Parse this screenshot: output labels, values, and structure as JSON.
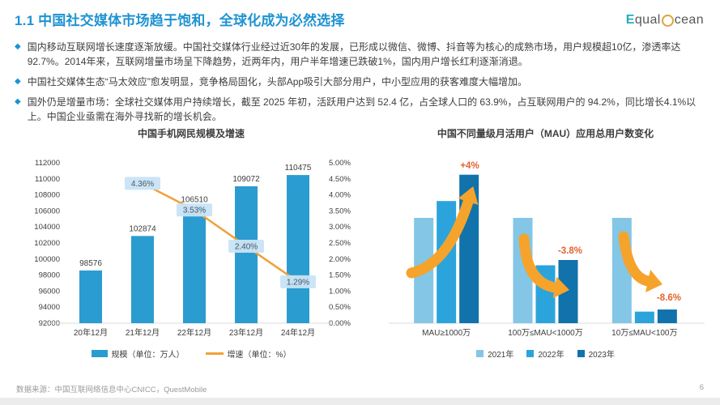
{
  "header": {
    "title": "1.1 中国社交媒体市场趋于饱和，全球化成为必然选择",
    "logo": {
      "e": "E",
      "qual": "qual",
      "cean": "cean"
    }
  },
  "bullets": {
    "glyph": "◆",
    "items": [
      "国内移动互联网增长速度逐渐放缓。中国社交媒体行业经过近30年的发展，已形成以微信、微博、抖音等为核心的成熟市场，用户规模超10亿，渗透率达92.7%。2014年来，互联网增量市场呈下降趋势，近两年内，用户半年增速已跌破1%，国内用户增长红利逐渐消退。",
      "中国社交媒体生态“马太效应”愈发明显，竞争格局固化，头部App吸引大部分用户，中小型应用的获客难度大幅增加。",
      "国外仍是增量市场：全球社交媒体用户持续增长，截至 2025 年初，活跃用户达到 52.4 亿，占全球人口的 63.9%，占互联网用户的 94.2%，同比增长4.1%以上。中国企业亟需在海外寻找新的增长机会。"
    ]
  },
  "chart_data": [
    {
      "type": "bar",
      "subtype": "combo-bar-line",
      "title": "中国手机网民规模及增速",
      "categories": [
        "20年12月",
        "21年12月",
        "22年12月",
        "23年12月",
        "24年12月"
      ],
      "series": [
        {
          "name": "规模（单位：万人）",
          "chart": "bar",
          "color": "#2B9CD0",
          "values": [
            98576,
            102874,
            106510,
            109072,
            110475
          ]
        },
        {
          "name": "增速（单位：%）",
          "chart": "line",
          "color": "#F0A139",
          "values": [
            null,
            4.36,
            3.53,
            2.4,
            1.29
          ],
          "point_labels": [
            "",
            "4.36%",
            "3.53%",
            "2.40%",
            "1.29%"
          ]
        }
      ],
      "y_left": {
        "min": 92000,
        "max": 112000,
        "step": 2000,
        "ticks": [
          "112000",
          "110000",
          "108000",
          "106000",
          "104000",
          "102000",
          "100000",
          "98000",
          "96000",
          "94000",
          "92000"
        ]
      },
      "y_right": {
        "min": 0,
        "max": 5,
        "step": 0.5,
        "ticks": [
          "5.00%",
          "4.50%",
          "4.00%",
          "3.50%",
          "3.00%",
          "2.50%",
          "2.00%",
          "1.50%",
          "1.00%",
          "0.50%",
          "0.00%"
        ]
      },
      "legend_position": "bottom",
      "grid": false
    },
    {
      "type": "bar",
      "subtype": "grouped-bar",
      "title": "中国不同量级月活用户（MAU）应用总用户数变化",
      "categories": [
        "MAU≥1000万",
        "100万≤MAU<1000万",
        "10万≤MAU<100万"
      ],
      "series": [
        {
          "name": "2021年",
          "color": "#84C6E6",
          "values": [
            100,
            100,
            100
          ]
        },
        {
          "name": "2022年",
          "color": "#2BA4DC",
          "values": [
            116,
            55,
            11
          ]
        },
        {
          "name": "2023年",
          "color": "#1272AB",
          "values": [
            141,
            60,
            13
          ]
        }
      ],
      "values_are_relative_estimates": true,
      "annotations": [
        {
          "text": "+4%",
          "category": 0,
          "trend": "up"
        },
        {
          "text": "-3.8%",
          "category": 1,
          "trend": "down"
        },
        {
          "text": "-8.6%",
          "category": 2,
          "trend": "down"
        }
      ],
      "ylim": [
        0,
        150
      ],
      "legend_position": "bottom",
      "grid": false
    }
  ],
  "footer": {
    "source": "数据来源：中国互联网络信息中心CNICC，QuestMobile",
    "page": "6"
  },
  "colors": {
    "accent_blue": "#1E93D2",
    "bar_blue": "#2B9CD0",
    "line_orange": "#F0A139",
    "point_label_bg": "#C9E4F5",
    "annotation_orange": "#E4622D",
    "arrow_orange": "#F5A32B",
    "y2021": "#84C6E6",
    "y2022": "#2BA4DC",
    "y2023": "#1272AB"
  }
}
